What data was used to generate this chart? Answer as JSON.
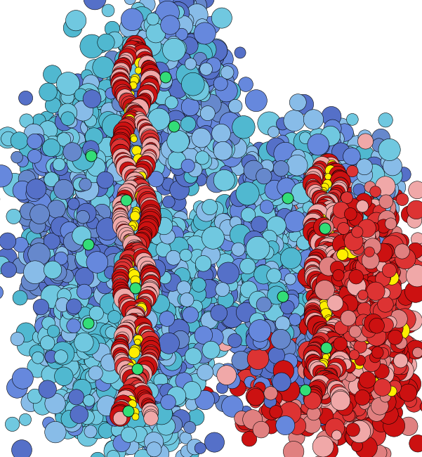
{
  "background_color": "#ffffff",
  "figsize": [
    6.01,
    6.5
  ],
  "dpi": 100,
  "colors": {
    "blue_dark": "#5570c8",
    "blue_medium": "#6688dd",
    "blue_light": "#88bce8",
    "cyan_light": "#70c8e0",
    "cyan_medium": "#50b8d0",
    "blue_purple": "#6688cc",
    "red_dark": "#cc1111",
    "red_medium": "#dd3333",
    "pink_light": "#f0a8a8",
    "pink_medium": "#e08080",
    "yellow": "#ffee00",
    "green": "#33dd77",
    "green_dark": "#22cc55",
    "white": "#ffffff"
  },
  "seed": 7
}
